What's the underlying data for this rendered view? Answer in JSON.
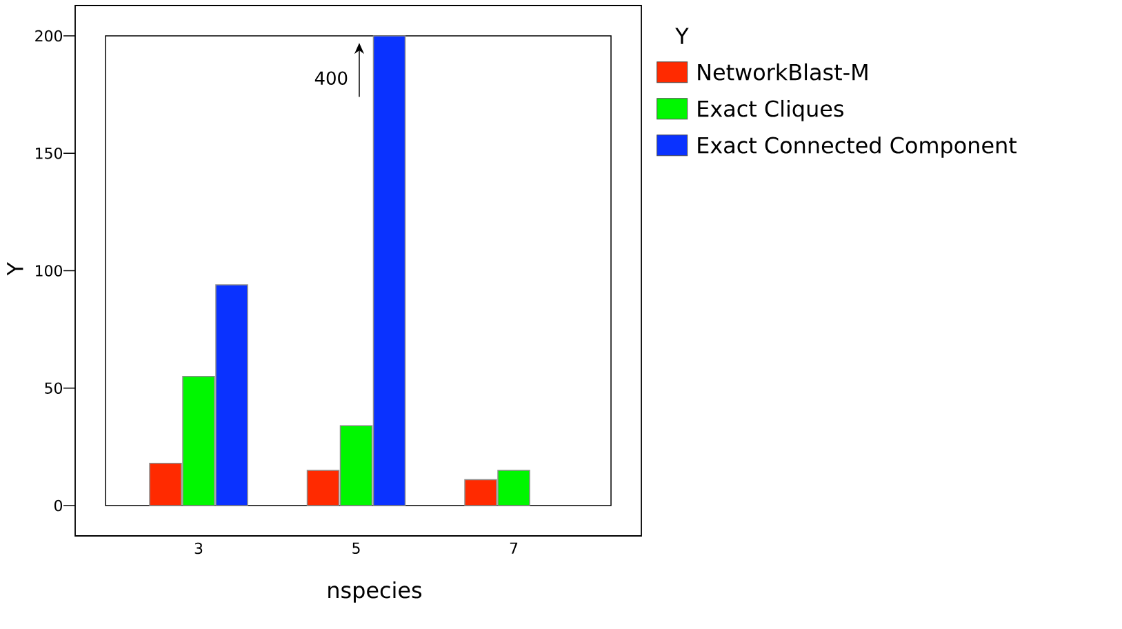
{
  "chart_data": {
    "type": "bar",
    "xlabel": "nspecies",
    "ylabel": "Y",
    "legend_title": "Y",
    "categories": [
      "3",
      "5",
      "7"
    ],
    "series": [
      {
        "name": "NetworkBlast-M",
        "color": "#ff2a00",
        "values": [
          18,
          15,
          11
        ]
      },
      {
        "name": "Exact Cliques",
        "color": "#00f700",
        "values": [
          55,
          34,
          15
        ]
      },
      {
        "name": "Exact Connected Component",
        "color": "#0a32ff",
        "values": [
          94,
          200,
          null
        ]
      }
    ],
    "ylim": [
      0,
      200
    ],
    "yticks": [
      0,
      50,
      100,
      150,
      200
    ],
    "annotations": [
      "400"
    ],
    "grid": false,
    "legend": "right"
  }
}
